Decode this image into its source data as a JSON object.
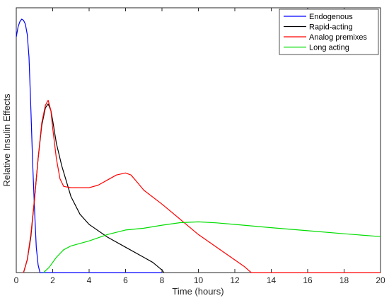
{
  "chart_data": {
    "type": "line",
    "title": "",
    "xlabel": "Time (hours)",
    "ylabel": "Relative Insulin Effects",
    "xlim": [
      0,
      20
    ],
    "ylim": [
      0,
      1
    ],
    "xticks": [
      0,
      2,
      4,
      6,
      8,
      10,
      12,
      14,
      16,
      18,
      20
    ],
    "yticks_labeled": false,
    "grid": false,
    "legend_position": "top-right",
    "series": [
      {
        "name": "Endogenous",
        "color": "#0000ff",
        "points": [
          [
            0,
            0.93
          ],
          [
            0.1,
            0.97
          ],
          [
            0.2,
            0.99
          ],
          [
            0.3,
            1.0
          ],
          [
            0.4,
            0.995
          ],
          [
            0.5,
            0.98
          ],
          [
            0.6,
            0.94
          ],
          [
            0.7,
            0.85
          ],
          [
            0.8,
            0.65
          ],
          [
            0.9,
            0.43
          ],
          [
            1.0,
            0.25
          ],
          [
            1.1,
            0.1
          ],
          [
            1.2,
            0.03
          ],
          [
            1.3,
            0.0
          ],
          [
            1.5,
            0.0
          ],
          [
            8,
            0.0
          ]
        ]
      },
      {
        "name": "Rapid-acting",
        "color": "#000000",
        "points": [
          [
            0.4,
            0.0
          ],
          [
            0.6,
            0.05
          ],
          [
            0.8,
            0.14
          ],
          [
            1.0,
            0.29
          ],
          [
            1.2,
            0.45
          ],
          [
            1.4,
            0.58
          ],
          [
            1.6,
            0.65
          ],
          [
            1.75,
            0.665
          ],
          [
            1.9,
            0.64
          ],
          [
            2.0,
            0.6
          ],
          [
            2.2,
            0.51
          ],
          [
            2.5,
            0.42
          ],
          [
            3.0,
            0.3
          ],
          [
            3.5,
            0.23
          ],
          [
            4.0,
            0.19
          ],
          [
            5.0,
            0.14
          ],
          [
            6.0,
            0.1
          ],
          [
            7.0,
            0.06
          ],
          [
            7.5,
            0.04
          ],
          [
            8.0,
            0.01
          ],
          [
            8.1,
            0.0
          ]
        ]
      },
      {
        "name": "Analog premixes",
        "color": "#ff0000",
        "points": [
          [
            0.4,
            0.0
          ],
          [
            0.6,
            0.05
          ],
          [
            0.8,
            0.15
          ],
          [
            1.0,
            0.29
          ],
          [
            1.2,
            0.45
          ],
          [
            1.4,
            0.59
          ],
          [
            1.6,
            0.66
          ],
          [
            1.75,
            0.68
          ],
          [
            1.9,
            0.64
          ],
          [
            2.0,
            0.57
          ],
          [
            2.2,
            0.45
          ],
          [
            2.4,
            0.37
          ],
          [
            2.6,
            0.34
          ],
          [
            3.0,
            0.335
          ],
          [
            4.0,
            0.335
          ],
          [
            4.5,
            0.345
          ],
          [
            5.0,
            0.365
          ],
          [
            5.5,
            0.385
          ],
          [
            6.0,
            0.393
          ],
          [
            6.3,
            0.385
          ],
          [
            6.6,
            0.36
          ],
          [
            7.0,
            0.325
          ],
          [
            8.0,
            0.27
          ],
          [
            9.0,
            0.21
          ],
          [
            10.0,
            0.15
          ],
          [
            11.0,
            0.1
          ],
          [
            12.0,
            0.05
          ],
          [
            12.5,
            0.025
          ],
          [
            12.9,
            0.0
          ],
          [
            20.0,
            0.0
          ]
        ]
      },
      {
        "name": "Long acting",
        "color": "#00dd00",
        "points": [
          [
            1.5,
            0.0
          ],
          [
            1.8,
            0.02
          ],
          [
            2.2,
            0.06
          ],
          [
            2.6,
            0.09
          ],
          [
            3.0,
            0.105
          ],
          [
            4.0,
            0.125
          ],
          [
            5.0,
            0.15
          ],
          [
            6.0,
            0.168
          ],
          [
            7.0,
            0.175
          ],
          [
            8.0,
            0.187
          ],
          [
            9.0,
            0.197
          ],
          [
            10.0,
            0.2
          ],
          [
            11.0,
            0.196
          ],
          [
            12.0,
            0.19
          ],
          [
            14.0,
            0.177
          ],
          [
            16.0,
            0.165
          ],
          [
            18.0,
            0.153
          ],
          [
            20.0,
            0.142
          ]
        ]
      }
    ]
  }
}
